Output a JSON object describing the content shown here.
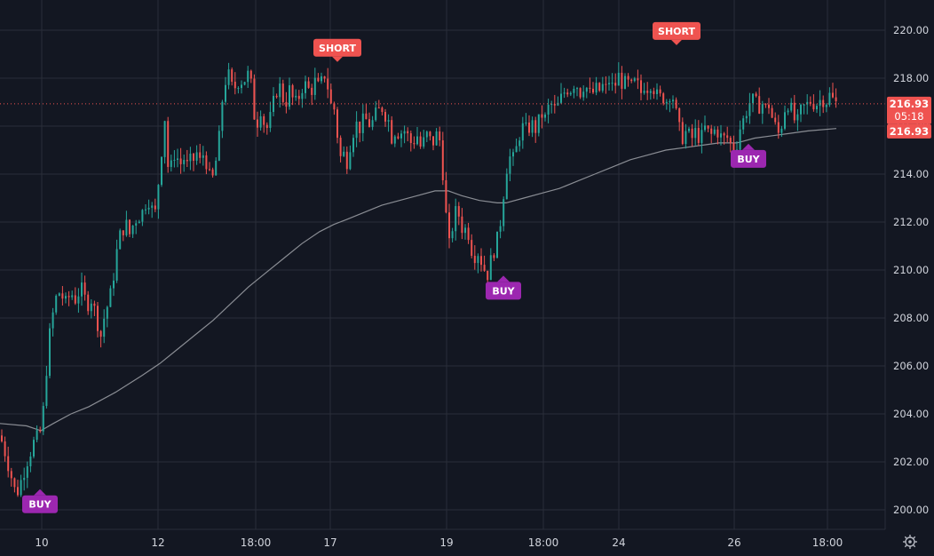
{
  "chart_data": {
    "type": "candlestick",
    "x_tick_labels": [
      "10",
      "12",
      "18:00",
      "17",
      "19",
      "18:00",
      "24",
      "26",
      "18:00"
    ],
    "y_tick_labels": [
      "200.00",
      "202.00",
      "204.00",
      "206.00",
      "208.00",
      "210.00",
      "212.00",
      "214.00",
      "216.00",
      "218.00",
      "220.00"
    ],
    "ylim": [
      199.2,
      220.8
    ],
    "xlim": [
      0,
      1000
    ],
    "grid": true,
    "current_price": "216.93",
    "countdown": "05:18",
    "colors": {
      "background": "#131722",
      "grid": "#2a2e39",
      "up": "#26a69a",
      "down": "#ef5350",
      "moving_average": "#8a8d94",
      "short_signal": "#ef5350",
      "buy_signal": "#9c27b0"
    },
    "signals": [
      {
        "type": "BUY",
        "x": 45,
        "price": 200.9,
        "label": "BUY"
      },
      {
        "type": "SHORT",
        "x": 380,
        "price": 218.6,
        "label": "SHORT"
      },
      {
        "type": "BUY",
        "x": 567,
        "price": 209.8,
        "label": "BUY"
      },
      {
        "type": "SHORT",
        "x": 762,
        "price": 219.3,
        "label": "SHORT"
      },
      {
        "type": "BUY",
        "x": 843,
        "price": 215.3,
        "label": "BUY"
      }
    ],
    "close_path": [
      [
        0,
        203.1
      ],
      [
        5,
        202.5
      ],
      [
        10,
        201.8
      ],
      [
        14,
        201.2
      ],
      [
        18,
        200.6
      ],
      [
        22,
        201.0
      ],
      [
        26,
        201.5
      ],
      [
        30,
        202.0
      ],
      [
        34,
        202.4
      ],
      [
        38,
        202.8
      ],
      [
        42,
        203.0
      ],
      [
        46,
        203.3
      ],
      [
        50,
        204.5
      ],
      [
        54,
        206.8
      ],
      [
        58,
        207.8
      ],
      [
        62,
        208.7
      ],
      [
        66,
        209.1
      ],
      [
        70,
        208.9
      ],
      [
        74,
        208.6
      ],
      [
        78,
        208.9
      ],
      [
        82,
        209.0
      ],
      [
        86,
        208.7
      ],
      [
        90,
        209.3
      ],
      [
        94,
        209.0
      ],
      [
        98,
        208.5
      ],
      [
        102,
        208.9
      ],
      [
        106,
        208.4
      ],
      [
        110,
        207.8
      ],
      [
        114,
        207.2
      ],
      [
        118,
        208.2
      ],
      [
        122,
        208.6
      ],
      [
        126,
        209.2
      ],
      [
        130,
        210.4
      ],
      [
        134,
        211.3
      ],
      [
        138,
        211.7
      ],
      [
        142,
        211.9
      ],
      [
        146,
        211.5
      ],
      [
        150,
        211.9
      ],
      [
        154,
        212.2
      ],
      [
        158,
        212.3
      ],
      [
        162,
        212.5
      ],
      [
        166,
        213.1
      ],
      [
        170,
        212.7
      ],
      [
        174,
        212.1
      ],
      [
        178,
        213.5
      ],
      [
        182,
        215.0
      ],
      [
        186,
        216.5
      ],
      [
        190,
        213.8
      ],
      [
        194,
        214.5
      ],
      [
        198,
        215.1
      ],
      [
        202,
        214.2
      ],
      [
        206,
        214.8
      ],
      [
        210,
        214.3
      ],
      [
        214,
        214.5
      ],
      [
        218,
        214.6
      ],
      [
        222,
        214.9
      ],
      [
        226,
        214.4
      ],
      [
        230,
        215.0
      ],
      [
        234,
        214.2
      ],
      [
        238,
        213.5
      ],
      [
        242,
        214.3
      ],
      [
        246,
        215.1
      ],
      [
        250,
        217.0
      ],
      [
        254,
        217.9
      ],
      [
        258,
        218.1
      ],
      [
        262,
        217.5
      ],
      [
        266,
        217.7
      ],
      [
        270,
        218.0
      ],
      [
        274,
        217.8
      ],
      [
        278,
        218.2
      ],
      [
        282,
        218.0
      ],
      [
        286,
        216.5
      ],
      [
        290,
        216.2
      ],
      [
        294,
        216.8
      ],
      [
        298,
        216.0
      ],
      [
        302,
        215.9
      ],
      [
        306,
        216.6
      ],
      [
        310,
        217.3
      ],
      [
        314,
        217.8
      ],
      [
        318,
        217.2
      ],
      [
        322,
        217.0
      ],
      [
        326,
        217.5
      ],
      [
        330,
        217.1
      ],
      [
        334,
        216.9
      ],
      [
        338,
        217.4
      ],
      [
        342,
        217.8
      ],
      [
        346,
        217.6
      ],
      [
        350,
        217.4
      ],
      [
        354,
        217.9
      ],
      [
        358,
        217.6
      ],
      [
        362,
        217.8
      ],
      [
        366,
        218.2
      ],
      [
        370,
        217.5
      ],
      [
        374,
        216.6
      ],
      [
        378,
        216.8
      ],
      [
        382,
        214.5
      ],
      [
        386,
        215.0
      ],
      [
        390,
        214.4
      ],
      [
        394,
        215.2
      ],
      [
        398,
        215.8
      ],
      [
        402,
        216.1
      ],
      [
        406,
        215.9
      ],
      [
        410,
        216.3
      ],
      [
        414,
        216.2
      ],
      [
        418,
        216.0
      ],
      [
        422,
        216.4
      ],
      [
        426,
        216.6
      ],
      [
        430,
        216.8
      ],
      [
        434,
        216.5
      ],
      [
        438,
        216.2
      ],
      [
        442,
        215.4
      ],
      [
        446,
        216.0
      ],
      [
        450,
        215.6
      ],
      [
        454,
        215.9
      ],
      [
        458,
        215.7
      ],
      [
        462,
        215.3
      ],
      [
        466,
        215.4
      ],
      [
        470,
        215.6
      ],
      [
        474,
        215.1
      ],
      [
        478,
        215.4
      ],
      [
        482,
        215.7
      ],
      [
        486,
        215.2
      ],
      [
        490,
        215.5
      ],
      [
        494,
        215.8
      ],
      [
        498,
        214.5
      ],
      [
        502,
        212.4
      ],
      [
        506,
        211.0
      ],
      [
        510,
        211.9
      ],
      [
        514,
        212.5
      ],
      [
        518,
        212.2
      ],
      [
        522,
        211.5
      ],
      [
        526,
        211.9
      ],
      [
        530,
        211.0
      ],
      [
        534,
        210.6
      ],
      [
        538,
        210.8
      ],
      [
        542,
        210.4
      ],
      [
        546,
        210.0
      ],
      [
        550,
        209.8
      ],
      [
        554,
        210.6
      ],
      [
        558,
        211.0
      ],
      [
        562,
        211.5
      ],
      [
        566,
        212.8
      ],
      [
        570,
        214.2
      ],
      [
        574,
        214.7
      ],
      [
        578,
        214.6
      ],
      [
        582,
        215.1
      ],
      [
        586,
        215.8
      ],
      [
        590,
        216.0
      ],
      [
        594,
        215.7
      ],
      [
        598,
        216.2
      ],
      [
        602,
        215.8
      ],
      [
        606,
        216.1
      ],
      [
        610,
        216.5
      ],
      [
        614,
        216.3
      ],
      [
        618,
        216.8
      ],
      [
        622,
        216.9
      ],
      [
        626,
        216.6
      ],
      [
        630,
        217.0
      ],
      [
        634,
        217.3
      ],
      [
        638,
        217.6
      ],
      [
        642,
        217.5
      ],
      [
        646,
        217.8
      ],
      [
        650,
        217.7
      ],
      [
        654,
        217.4
      ],
      [
        658,
        217.8
      ],
      [
        662,
        217.5
      ],
      [
        666,
        217.2
      ],
      [
        670,
        217.6
      ],
      [
        674,
        217.4
      ],
      [
        678,
        217.7
      ],
      [
        682,
        217.5
      ],
      [
        686,
        217.9
      ],
      [
        690,
        217.6
      ],
      [
        694,
        217.8
      ],
      [
        698,
        218.2
      ],
      [
        702,
        217.6
      ],
      [
        706,
        217.9
      ],
      [
        710,
        217.5
      ],
      [
        714,
        217.8
      ],
      [
        718,
        217.7
      ],
      [
        722,
        217.4
      ],
      [
        726,
        217.8
      ],
      [
        730,
        217.6
      ],
      [
        734,
        217.9
      ],
      [
        738,
        217.4
      ],
      [
        742,
        217.1
      ],
      [
        746,
        217.3
      ],
      [
        750,
        217.0
      ],
      [
        754,
        217.4
      ],
      [
        758,
        217.2
      ],
      [
        762,
        216.4
      ],
      [
        766,
        215.7
      ],
      [
        770,
        215.5
      ],
      [
        774,
        215.9
      ],
      [
        778,
        215.3
      ],
      [
        782,
        215.8
      ],
      [
        786,
        215.6
      ],
      [
        790,
        215.5
      ],
      [
        794,
        215.9
      ],
      [
        798,
        215.7
      ],
      [
        802,
        215.6
      ],
      [
        806,
        215.9
      ],
      [
        810,
        215.7
      ],
      [
        814,
        215.4
      ],
      [
        818,
        215.6
      ],
      [
        822,
        215.3
      ],
      [
        826,
        215.0
      ],
      [
        830,
        215.3
      ],
      [
        834,
        216.0
      ],
      [
        838,
        216.3
      ],
      [
        842,
        216.8
      ],
      [
        846,
        217.1
      ],
      [
        850,
        217.0
      ],
      [
        854,
        216.8
      ],
      [
        858,
        217.0
      ],
      [
        862,
        216.7
      ],
      [
        866,
        216.9
      ],
      [
        870,
        216.3
      ],
      [
        874,
        215.9
      ],
      [
        878,
        215.6
      ],
      [
        882,
        216.4
      ],
      [
        886,
        217.1
      ],
      [
        890,
        216.8
      ],
      [
        894,
        216.3
      ],
      [
        898,
        216.1
      ],
      [
        902,
        216.6
      ],
      [
        906,
        216.8
      ],
      [
        910,
        216.9
      ],
      [
        914,
        217.1
      ],
      [
        918,
        216.9
      ],
      [
        922,
        217.0
      ],
      [
        926,
        217.2
      ],
      [
        930,
        217.0
      ],
      [
        934,
        217.3
      ],
      [
        938,
        217.1
      ],
      [
        942,
        216.93
      ]
    ],
    "ma_path": [
      [
        0,
        203.6
      ],
      [
        30,
        203.5
      ],
      [
        46,
        203.3
      ],
      [
        60,
        203.6
      ],
      [
        80,
        204.0
      ],
      [
        100,
        204.3
      ],
      [
        130,
        204.9
      ],
      [
        160,
        205.6
      ],
      [
        180,
        206.1
      ],
      [
        200,
        206.7
      ],
      [
        220,
        207.3
      ],
      [
        240,
        207.9
      ],
      [
        260,
        208.6
      ],
      [
        280,
        209.3
      ],
      [
        300,
        209.9
      ],
      [
        320,
        210.5
      ],
      [
        340,
        211.1
      ],
      [
        360,
        211.6
      ],
      [
        376,
        211.9
      ],
      [
        390,
        212.1
      ],
      [
        410,
        212.4
      ],
      [
        430,
        212.7
      ],
      [
        450,
        212.9
      ],
      [
        470,
        213.1
      ],
      [
        490,
        213.3
      ],
      [
        505,
        213.3
      ],
      [
        520,
        213.1
      ],
      [
        540,
        212.9
      ],
      [
        560,
        212.8
      ],
      [
        570,
        212.8
      ],
      [
        590,
        213.0
      ],
      [
        610,
        213.2
      ],
      [
        630,
        213.4
      ],
      [
        650,
        213.7
      ],
      [
        670,
        214.0
      ],
      [
        690,
        214.3
      ],
      [
        710,
        214.6
      ],
      [
        730,
        214.8
      ],
      [
        750,
        215.0
      ],
      [
        770,
        215.1
      ],
      [
        790,
        215.2
      ],
      [
        810,
        215.3
      ],
      [
        830,
        215.3
      ],
      [
        850,
        215.5
      ],
      [
        870,
        215.6
      ],
      [
        890,
        215.7
      ],
      [
        910,
        215.8
      ],
      [
        942,
        215.9
      ]
    ]
  },
  "settings_icon": "gear-icon"
}
